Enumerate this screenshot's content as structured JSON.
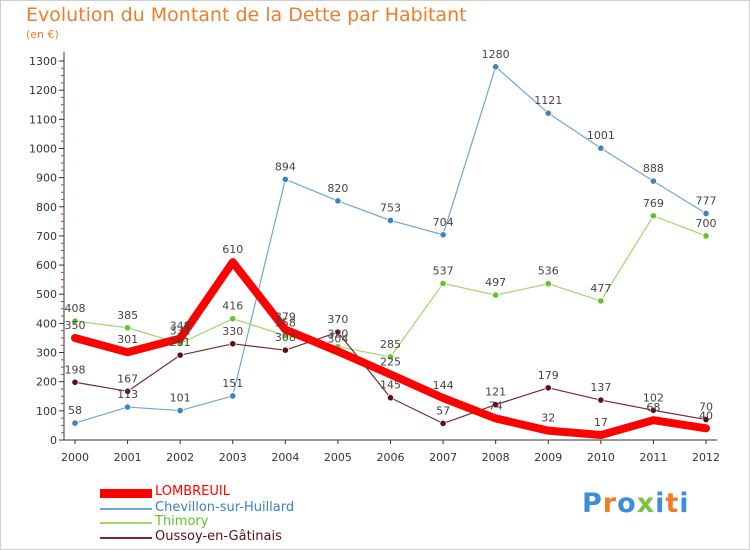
{
  "title": "Evolution du Montant de la Dette par Habitant",
  "subtitle": "(en €)",
  "logo": {
    "text": "Proxiti",
    "colors": [
      "#3a8fd6",
      "#f07d2a",
      "#3a8fd6",
      "#7cc242",
      "#3a8fd6",
      "#f07d2a",
      "#3a8fd6"
    ]
  },
  "chart_data": {
    "type": "line",
    "x": [
      "2000",
      "2001",
      "2002",
      "2003",
      "2004",
      "2005",
      "2006",
      "2007",
      "2008",
      "2009",
      "2010",
      "2011",
      "2012"
    ],
    "ylim": [
      0,
      1300
    ],
    "yticks": [
      0,
      100,
      200,
      300,
      400,
      500,
      600,
      700,
      800,
      900,
      1000,
      1100,
      1200,
      1300
    ],
    "grid": false,
    "legend": "bottom-left",
    "series": [
      {
        "name": "LOMBREUIL",
        "color": "#ff0000",
        "marker": "#ff0000",
        "width": 8,
        "values": [
          350,
          301,
          348,
          610,
          379,
          304,
          225,
          144,
          74,
          32,
          17,
          68,
          40
        ],
        "labels": [
          "350",
          "301",
          "348",
          "610",
          "379",
          "304",
          "225",
          "144",
          "74",
          "32",
          "17",
          "68",
          "40"
        ]
      },
      {
        "name": "Chevillon-sur-Huillard",
        "color": "#6fa6d8",
        "marker": "#3b82c4",
        "width": 1.2,
        "values": [
          58,
          113,
          101,
          151,
          894,
          820,
          753,
          704,
          1280,
          1121,
          1001,
          888,
          777
        ],
        "labels": [
          "58",
          "113",
          "101",
          "151",
          "894",
          "820",
          "753",
          "704",
          "1280",
          "1121",
          "1001",
          "888",
          "777"
        ]
      },
      {
        "name": "Thimory",
        "color": "#9ed86a",
        "marker": "#66c22a",
        "width": 1.2,
        "values": [
          408,
          385,
          331,
          416,
          358,
          320,
          285,
          537,
          497,
          536,
          477,
          769,
          700
        ],
        "labels": [
          "408",
          "385",
          "331",
          "416",
          "358",
          "320",
          "285",
          "537",
          "497",
          "536",
          "477",
          "769",
          "700"
        ]
      },
      {
        "name": "Oussoy-en-Gâtinais",
        "color": "#7a2a2a",
        "marker": "#5a1212",
        "width": 1.2,
        "values": [
          198,
          167,
          291,
          330,
          308,
          370,
          145,
          57,
          121,
          179,
          137,
          102,
          70
        ],
        "labels": [
          "198",
          "167",
          "291",
          "330",
          "308",
          "370",
          "145",
          "57",
          "121",
          "179",
          "137",
          "102",
          "70"
        ]
      }
    ]
  }
}
